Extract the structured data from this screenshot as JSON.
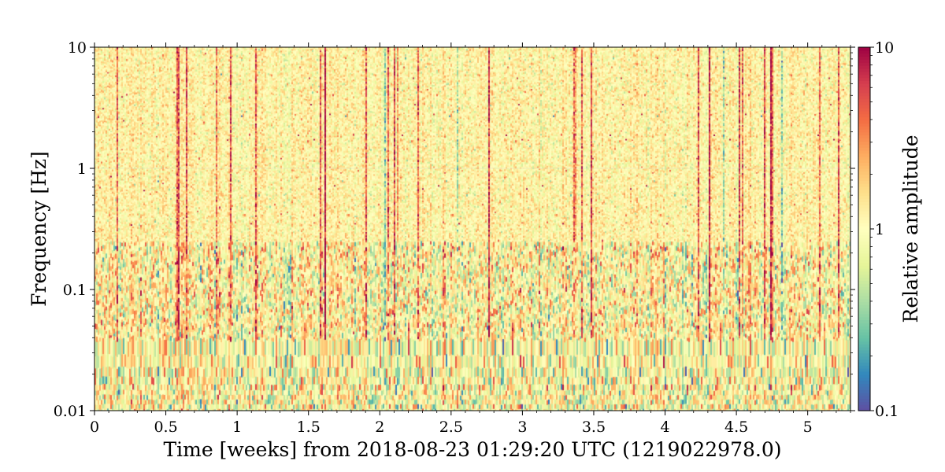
{
  "chart_data": {
    "type": "heatmap",
    "title": "",
    "xlabel": "Time [weeks] from 2018-08-23 01:29:20 UTC (1219022978.0)",
    "ylabel": "Frequency [Hz]",
    "xlim": [
      0,
      5.3
    ],
    "ylim": [
      0.01,
      10
    ],
    "yscale": "log",
    "x_ticks": [
      0,
      0.5,
      1,
      1.5,
      2,
      2.5,
      3,
      3.5,
      4,
      4.5,
      5
    ],
    "x_tick_labels": [
      "0",
      "0.5",
      "1",
      "1.5",
      "2",
      "2.5",
      "3",
      "3.5",
      "4",
      "4.5",
      "5"
    ],
    "y_ticks": [
      0.01,
      0.1,
      1,
      10
    ],
    "y_tick_labels": [
      "0.01",
      "0.1",
      "1",
      "10"
    ],
    "colorbar": {
      "label": "Relative amplitude",
      "scale": "log",
      "range": [
        0.1,
        10
      ],
      "ticks": [
        0.1,
        1,
        10
      ],
      "tick_labels": [
        "0.1",
        "1",
        "10"
      ],
      "colormap": "Spectral_r",
      "colors": [
        "#5e4fa2",
        "#3288bd",
        "#66c2a5",
        "#abdda4",
        "#e6f598",
        "#ffffbf",
        "#fee08b",
        "#fdae61",
        "#f46d43",
        "#d53e4f",
        "#9e0142"
      ]
    },
    "grid": true,
    "legend": "none"
  }
}
